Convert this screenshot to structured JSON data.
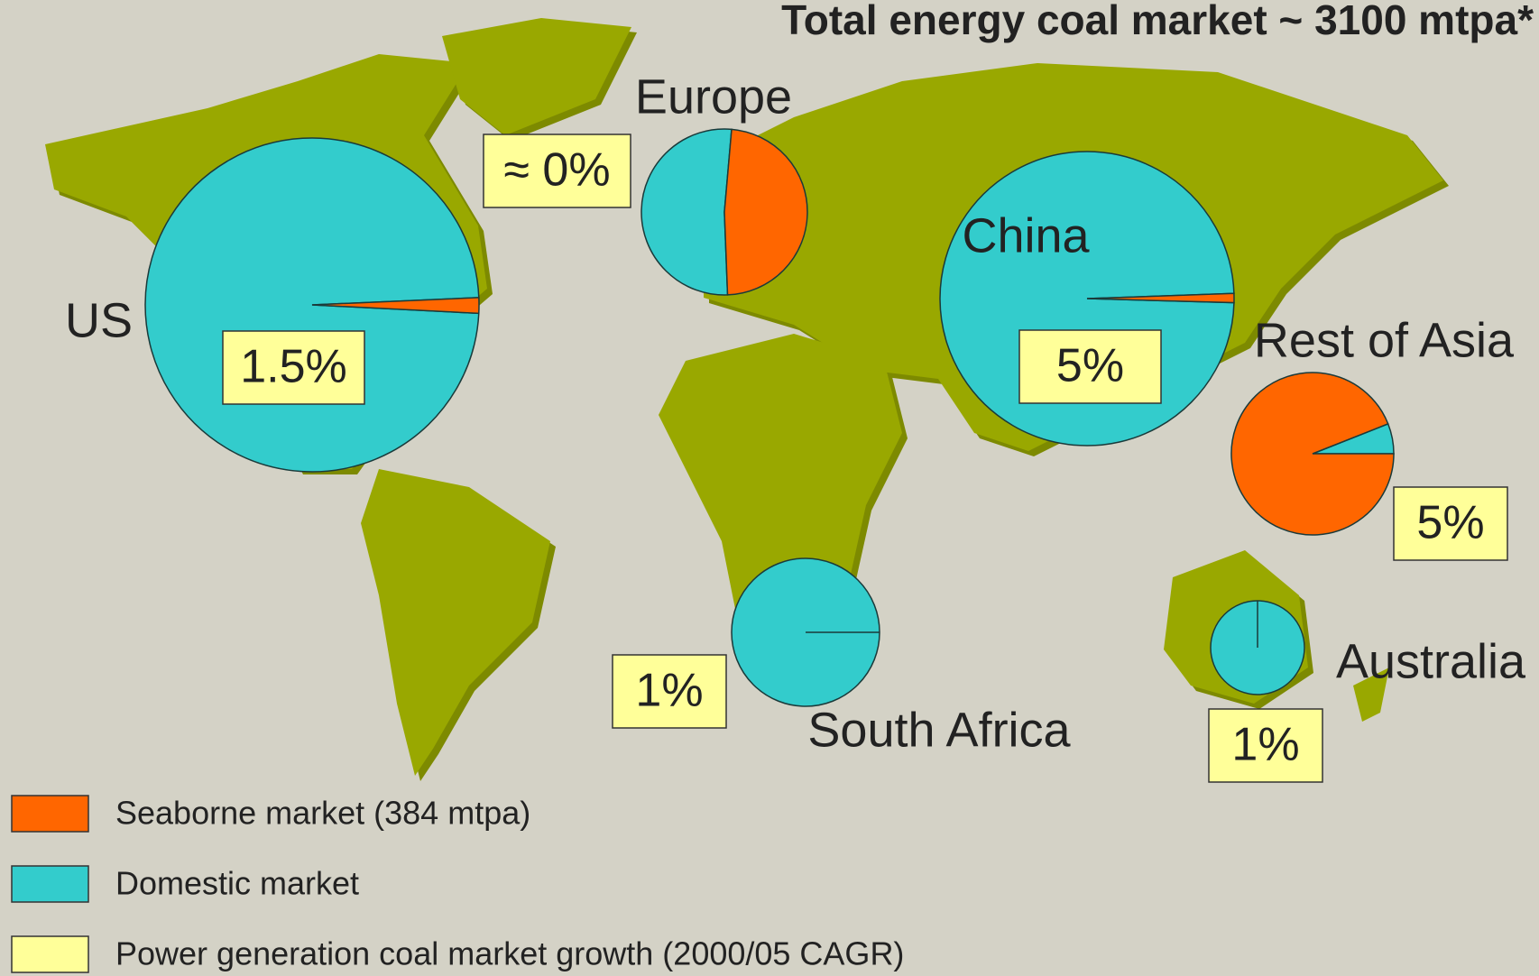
{
  "title": "Total energy coal market ~ 3100 mtpa*",
  "colors": {
    "seaborne": "#ff6600",
    "domestic": "#33cccc",
    "growth": "#ffff99"
  },
  "regions": [
    {
      "name": "US",
      "growth": "1.5%",
      "seaborne": 1.5,
      "domestic": 98.5
    },
    {
      "name": "Europe",
      "growth": "≈ 0%",
      "seaborne": 48,
      "domestic": 52
    },
    {
      "name": "China",
      "growth": "5%",
      "seaborne": 1,
      "domestic": 99
    },
    {
      "name": "Rest of Asia",
      "growth": "5%",
      "seaborne": 94,
      "domestic": 6
    },
    {
      "name": "South Africa",
      "growth": "1%",
      "seaborne": 0,
      "domestic": 100
    },
    {
      "name": "Australia",
      "growth": "1%",
      "seaborne": 0,
      "domestic": 100
    }
  ],
  "legend": [
    "Seaborne market (384 mtpa)",
    "Domestic market",
    "Power generation coal market growth (2000/05 CAGR)"
  ]
}
